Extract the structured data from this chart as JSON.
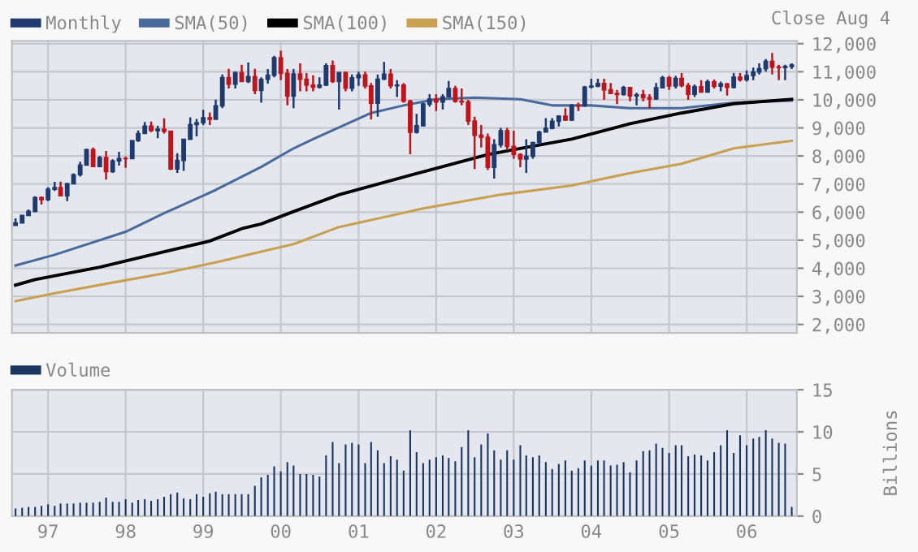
{
  "chart_data": [
    {
      "type": "candlestick",
      "legend": "top left",
      "grid": true,
      "annotations": [
        "Close Aug 4"
      ],
      "xlim": [
        "1996-07-15",
        "2006-08-25"
      ],
      "ylim": [
        1700,
        12100
      ],
      "xticks": [
        {
          "value": "1997-01",
          "label": null
        },
        {
          "value": "1998-01",
          "label": null
        },
        {
          "value": "1999-01",
          "label": null
        },
        {
          "value": "2000-01",
          "label": null
        },
        {
          "value": "2001-01",
          "label": null
        },
        {
          "value": "2002-01",
          "label": null
        },
        {
          "value": "2003-01",
          "label": null
        },
        {
          "value": "2004-01",
          "label": null
        },
        {
          "value": "2005-01",
          "label": null
        },
        {
          "value": "2006-01",
          "label": null
        }
      ],
      "yticks": [
        {
          "value": 2000,
          "label": "2,000"
        },
        {
          "value": 3000,
          "label": "3,000"
        },
        {
          "value": 4000,
          "label": "4,000"
        },
        {
          "value": 5000,
          "label": "5,000"
        },
        {
          "value": 6000,
          "label": "6,000"
        },
        {
          "value": 7000,
          "label": "7,000"
        },
        {
          "value": 8000,
          "label": "8,000"
        },
        {
          "value": 9000,
          "label": "9,000"
        },
        {
          "value": 10000,
          "label": "10,000"
        },
        {
          "value": 11000,
          "label": "11,000"
        },
        {
          "value": 12000,
          "label": "12,000"
        }
      ],
      "tick_labels": "y",
      "series": [
        {
          "type": "candlestick",
          "name": "Monthly",
          "color": "#1f3a6e",
          "x": [
            "1996-08",
            "1996-09",
            "1996-10",
            "1996-11",
            "1996-12",
            "1997-01",
            "1997-02",
            "1997-03",
            "1997-04",
            "1997-05",
            "1997-06",
            "1997-07",
            "1997-08",
            "1997-09",
            "1997-10",
            "1997-11",
            "1997-12",
            "1998-01",
            "1998-02",
            "1998-03",
            "1998-04",
            "1998-05",
            "1998-06",
            "1998-07",
            "1998-08",
            "1998-09",
            "1998-10",
            "1998-11",
            "1998-12",
            "1999-01",
            "1999-02",
            "1999-03",
            "1999-04",
            "1999-05",
            "1999-06",
            "1999-07",
            "1999-08",
            "1999-09",
            "1999-10",
            "1999-11",
            "1999-12",
            "2000-01",
            "2000-02",
            "2000-03",
            "2000-04",
            "2000-05",
            "2000-06",
            "2000-07",
            "2000-08",
            "2000-09",
            "2000-10",
            "2000-11",
            "2000-12",
            "2001-01",
            "2001-02",
            "2001-03",
            "2001-04",
            "2001-05",
            "2001-06",
            "2001-07",
            "2001-08",
            "2001-09",
            "2001-10",
            "2001-11",
            "2001-12",
            "2002-01",
            "2002-02",
            "2002-03",
            "2002-04",
            "2002-05",
            "2002-06",
            "2002-07",
            "2002-08",
            "2002-09",
            "2002-10",
            "2002-11",
            "2002-12",
            "2003-01",
            "2003-02",
            "2003-03",
            "2003-04",
            "2003-05",
            "2003-06",
            "2003-07",
            "2003-08",
            "2003-09",
            "2003-10",
            "2003-11",
            "2003-12",
            "2004-01",
            "2004-02",
            "2004-03",
            "2004-04",
            "2004-05",
            "2004-06",
            "2004-07",
            "2004-08",
            "2004-09",
            "2004-10",
            "2004-11",
            "2004-12",
            "2005-01",
            "2005-02",
            "2005-03",
            "2005-04",
            "2005-05",
            "2005-06",
            "2005-07",
            "2005-08",
            "2005-09",
            "2005-10",
            "2005-11",
            "2005-12",
            "2006-01",
            "2006-02",
            "2006-03",
            "2006-04",
            "2006-05",
            "2006-06",
            "2006-07",
            "2006-08"
          ],
          "ohlc": [
            [
              5529,
              5780,
              5525,
              5616
            ],
            [
              5616,
              5894,
              5607,
              5882
            ],
            [
              5882,
              6094,
              5880,
              6029
            ],
            [
              6029,
              6562,
              6000,
              6522
            ],
            [
              6522,
              6561,
              6268,
              6448
            ],
            [
              6448,
              6883,
              6391,
              6813
            ],
            [
              6813,
              7079,
              6750,
              6877
            ],
            [
              6877,
              7085,
              6583,
              6584
            ],
            [
              6584,
              7040,
              6391,
              7009
            ],
            [
              7009,
              7384,
              7000,
              7331
            ],
            [
              7331,
              7796,
              7269,
              7673
            ],
            [
              7673,
              8254,
              7655,
              8223
            ],
            [
              8223,
              8299,
              7600,
              7622
            ],
            [
              7622,
              8000,
              7600,
              7945
            ],
            [
              7945,
              8178,
              7161,
              7442
            ],
            [
              7442,
              7881,
              7400,
              7823
            ],
            [
              7823,
              8150,
              7660,
              7908
            ],
            [
              7908,
              7980,
              7580,
              7907
            ],
            [
              7907,
              8560,
              7900,
              8546
            ],
            [
              8546,
              8906,
              8500,
              8800
            ],
            [
              8800,
              9211,
              8800,
              9063
            ],
            [
              9063,
              9226,
              8850,
              8900
            ],
            [
              8900,
              9070,
              8630,
              8952
            ],
            [
              8952,
              9338,
              8800,
              8883
            ],
            [
              8883,
              8890,
              7500,
              7539
            ],
            [
              7539,
              8100,
              7400,
              7843
            ],
            [
              7843,
              8600,
              7467,
              8592
            ],
            [
              8592,
              9380,
              8590,
              9117
            ],
            [
              9117,
              9320,
              8700,
              9181
            ],
            [
              9181,
              9644,
              9100,
              9359
            ],
            [
              9359,
              9552,
              9100,
              9307
            ],
            [
              9307,
              10007,
              9300,
              9786
            ],
            [
              9786,
              10900,
              9700,
              10789
            ],
            [
              10789,
              11108,
              10400,
              10560
            ],
            [
              10560,
              11000,
              10400,
              10971
            ],
            [
              10971,
              11252,
              10650,
              10655
            ],
            [
              10655,
              11326,
              10600,
              10829
            ],
            [
              10829,
              11108,
              10200,
              10337
            ],
            [
              10337,
              10800,
              9900,
              10729
            ],
            [
              10729,
              11100,
              10580,
              10878
            ],
            [
              10878,
              11568,
              10800,
              11497
            ],
            [
              11497,
              11750,
              10700,
              10941
            ],
            [
              10941,
              11100,
              9800,
              10128
            ],
            [
              10128,
              11100,
              9700,
              10922
            ],
            [
              10922,
              11300,
              10300,
              10734
            ],
            [
              10734,
              10950,
              10300,
              10522
            ],
            [
              10522,
              10870,
              10300,
              10448
            ],
            [
              10448,
              10800,
              10400,
              10522
            ],
            [
              10522,
              11300,
              10500,
              11215
            ],
            [
              11215,
              11400,
              10600,
              10651
            ],
            [
              10651,
              10975,
              9650,
              10971
            ],
            [
              10971,
              11000,
              10300,
              10415
            ],
            [
              10415,
              10900,
              10300,
              10787
            ],
            [
              10787,
              11000,
              10500,
              10887
            ],
            [
              10887,
              11000,
              10400,
              10495
            ],
            [
              10495,
              10600,
              9300,
              9879
            ],
            [
              9879,
              10900,
              9400,
              10735
            ],
            [
              10735,
              11350,
              10700,
              10912
            ],
            [
              10912,
              11100,
              10400,
              10502
            ],
            [
              10502,
              10700,
              10100,
              10523
            ],
            [
              10523,
              10600,
              9900,
              9950
            ],
            [
              9950,
              10000,
              8062,
              8848
            ],
            [
              8848,
              9500,
              8800,
              9075
            ],
            [
              9075,
              9900,
              9050,
              9852
            ],
            [
              9852,
              10200,
              9750,
              10022
            ],
            [
              10022,
              10200,
              9600,
              9920
            ],
            [
              9920,
              10200,
              9650,
              10106
            ],
            [
              10106,
              10670,
              10100,
              10404
            ],
            [
              10404,
              10500,
              9900,
              9946
            ],
            [
              9946,
              10400,
              9800,
              9925
            ],
            [
              9925,
              10000,
              9100,
              9243
            ],
            [
              9243,
              9400,
              7532,
              8737
            ],
            [
              8737,
              9100,
              8300,
              8664
            ],
            [
              8664,
              8800,
              7500,
              7592
            ],
            [
              7592,
              8600,
              7197,
              8397
            ],
            [
              8397,
              9000,
              8300,
              8896
            ],
            [
              8896,
              9000,
              8200,
              8342
            ],
            [
              8342,
              8900,
              7900,
              8054
            ],
            [
              8054,
              8100,
              7600,
              7891
            ],
            [
              7891,
              8600,
              7400,
              7992
            ],
            [
              7992,
              8500,
              7900,
              8480
            ],
            [
              8480,
              8900,
              8400,
              8850
            ],
            [
              8850,
              9350,
              8850,
              8985
            ],
            [
              8985,
              9350,
              8950,
              9234
            ],
            [
              9234,
              9450,
              9050,
              9416
            ],
            [
              9416,
              9700,
              9250,
              9275
            ],
            [
              9275,
              9850,
              9250,
              9801
            ],
            [
              9801,
              9900,
              9600,
              9782
            ],
            [
              9782,
              10500,
              9750,
              10454
            ],
            [
              10454,
              10750,
              10400,
              10488
            ],
            [
              10488,
              10750,
              10450,
              10584
            ],
            [
              10584,
              10750,
              10000,
              10358
            ],
            [
              10358,
              10600,
              10200,
              10226
            ],
            [
              10226,
              10350,
              9850,
              10188
            ],
            [
              10188,
              10500,
              10150,
              10435
            ],
            [
              10435,
              10450,
              9950,
              10140
            ],
            [
              10140,
              10250,
              9800,
              10174
            ],
            [
              10174,
              10350,
              9950,
              10080
            ],
            [
              10080,
              10200,
              9700,
              10027
            ],
            [
              10027,
              10600,
              10000,
              10428
            ],
            [
              10428,
              10850,
              10400,
              10783
            ],
            [
              10783,
              10850,
              10350,
              10490
            ],
            [
              10490,
              10850,
              10400,
              10766
            ],
            [
              10766,
              10950,
              10450,
              10504
            ],
            [
              10504,
              10600,
              10000,
              10193
            ],
            [
              10193,
              10550,
              10100,
              10467
            ],
            [
              10467,
              10700,
              10250,
              10275
            ],
            [
              10275,
              10720,
              10250,
              10641
            ],
            [
              10641,
              10720,
              10400,
              10482
            ],
            [
              10482,
              10650,
              10300,
              10569
            ],
            [
              10569,
              10600,
              10150,
              10440
            ],
            [
              10440,
              10950,
              10400,
              10806
            ],
            [
              10806,
              10950,
              10650,
              10718
            ],
            [
              10718,
              11050,
              10650,
              10865
            ],
            [
              10865,
              11150,
              10700,
              10993
            ],
            [
              10993,
              11300,
              10900,
              11109
            ],
            [
              11109,
              11450,
              11000,
              11367
            ],
            [
              11367,
              11670,
              10900,
              11168
            ],
            [
              11168,
              11250,
              10700,
              11150
            ],
            [
              11150,
              11250,
              10700,
              11186
            ],
            [
              11186,
              11300,
              11100,
              11242
            ]
          ],
          "colors": [
            "#1f3a6e",
            "#1f3a6e",
            "#1f3a6e",
            "#1f3a6e",
            "#c0141c",
            "#1f3a6e",
            "#1f3a6e",
            "#c0141c",
            "#1f3a6e",
            "#1f3a6e",
            "#1f3a6e",
            "#1f3a6e",
            "#c0141c",
            "#1f3a6e",
            "#c0141c",
            "#1f3a6e",
            "#1f3a6e",
            "#c0141c",
            "#1f3a6e",
            "#1f3a6e",
            "#1f3a6e",
            "#c0141c",
            "#1f3a6e",
            "#c0141c",
            "#c0141c",
            "#1f3a6e",
            "#1f3a6e",
            "#1f3a6e",
            "#1f3a6e",
            "#1f3a6e",
            "#c0141c",
            "#1f3a6e",
            "#1f3a6e",
            "#c0141c",
            "#1f3a6e",
            "#c0141c",
            "#1f3a6e",
            "#c0141c",
            "#1f3a6e",
            "#1f3a6e",
            "#1f3a6e",
            "#c0141c",
            "#c0141c",
            "#1f3a6e",
            "#c0141c",
            "#c0141c",
            "#c0141c",
            "#1f3a6e",
            "#1f3a6e",
            "#c0141c",
            "#1f3a6e",
            "#c0141c",
            "#1f3a6e",
            "#1f3a6e",
            "#c0141c",
            "#c0141c",
            "#1f3a6e",
            "#1f3a6e",
            "#c0141c",
            "#1f3a6e",
            "#c0141c",
            "#c0141c",
            "#1f3a6e",
            "#1f3a6e",
            "#1f3a6e",
            "#c0141c",
            "#1f3a6e",
            "#1f3a6e",
            "#c0141c",
            "#c0141c",
            "#c0141c",
            "#c0141c",
            "#c0141c",
            "#c0141c",
            "#1f3a6e",
            "#1f3a6e",
            "#c0141c",
            "#c0141c",
            "#c0141c",
            "#1f3a6e",
            "#1f3a6e",
            "#1f3a6e",
            "#1f3a6e",
            "#1f3a6e",
            "#1f3a6e",
            "#c0141c",
            "#1f3a6e",
            "#c0141c",
            "#1f3a6e",
            "#1f3a6e",
            "#1f3a6e",
            "#c0141c",
            "#c0141c",
            "#c0141c",
            "#1f3a6e",
            "#c0141c",
            "#1f3a6e",
            "#c0141c",
            "#c0141c",
            "#1f3a6e",
            "#1f3a6e",
            "#c0141c",
            "#1f3a6e",
            "#c0141c",
            "#c0141c",
            "#1f3a6e",
            "#c0141c",
            "#1f3a6e",
            "#c0141c",
            "#1f3a6e",
            "#c0141c",
            "#1f3a6e",
            "#c0141c",
            "#1f3a6e",
            "#1f3a6e",
            "#1f3a6e",
            "#1f3a6e",
            "#c0141c",
            "#c0141c",
            "#1f3a6e",
            "#1f3a6e"
          ]
        },
        {
          "type": "line",
          "name": "SMA(50)",
          "color": "#4a6a9c",
          "x": [
            "1996-08",
            "1997-02",
            "1998-01",
            "1998-07",
            "1999-03",
            "1999-10",
            "2000-03",
            "2000-06",
            "2001-03",
            "2001-08",
            "2002-01",
            "2002-07",
            "2003-02",
            "2003-07",
            "2004-01",
            "2004-07",
            "2005-03",
            "2005-11",
            "2006-08"
          ],
          "values": [
            4100,
            4480,
            5300,
            5960,
            6790,
            7610,
            8270,
            8600,
            9530,
            9800,
            10020,
            10080,
            10020,
            9800,
            9800,
            9700,
            9700,
            9900,
            9970
          ]
        },
        {
          "type": "line",
          "name": "SMA(100)",
          "color": "#000000",
          "x": [
            "1996-08",
            "1996-11",
            "1997-09",
            "1998-07",
            "1999-02",
            "1999-07",
            "1999-10",
            "2000-03",
            "2000-10",
            "2001-11",
            "2002-09",
            "2003-02",
            "2003-10",
            "2004-07",
            "2005-03",
            "2005-11",
            "2006-08"
          ],
          "values": [
            3400,
            3600,
            4040,
            4590,
            4970,
            5410,
            5580,
            6020,
            6620,
            7440,
            8050,
            8270,
            8600,
            9150,
            9530,
            9860,
            10020
          ]
        },
        {
          "type": "line",
          "name": "SMA(150)",
          "color": "#c8a050",
          "x": [
            "1996-08",
            "1997-02",
            "1997-11",
            "1998-07",
            "1999-03",
            "1999-10",
            "2000-03",
            "2000-10",
            "2001-11",
            "2002-11",
            "2003-10",
            "2004-07",
            "2005-03",
            "2005-11",
            "2006-08"
          ],
          "values": [
            2830,
            3110,
            3490,
            3820,
            4210,
            4590,
            4860,
            5470,
            6130,
            6620,
            6950,
            7390,
            7720,
            8270,
            8540
          ]
        }
      ]
    },
    {
      "type": "bar",
      "legend": "top left",
      "grid": true,
      "ylabel": "Billions",
      "xlim": [
        "1996-07-15",
        "2006-08-25"
      ],
      "ylim": [
        0,
        15
      ],
      "yticks": [
        0,
        5,
        10,
        15
      ],
      "xticks": [
        {
          "value": "1997-01",
          "label": "97"
        },
        {
          "value": "1998-01",
          "label": "98"
        },
        {
          "value": "1999-01",
          "label": "99"
        },
        {
          "value": "2000-01",
          "label": "00"
        },
        {
          "value": "2001-01",
          "label": "01"
        },
        {
          "value": "2002-01",
          "label": "02"
        },
        {
          "value": "2003-01",
          "label": "03"
        },
        {
          "value": "2004-01",
          "label": "04"
        },
        {
          "value": "2005-01",
          "label": "05"
        },
        {
          "value": "2006-01",
          "label": "06"
        }
      ],
      "series": [
        {
          "name": "Volume",
          "color": "#1a3560",
          "x": [
            "1996-08",
            "1996-09",
            "1996-10",
            "1996-11",
            "1996-12",
            "1997-01",
            "1997-02",
            "1997-03",
            "1997-04",
            "1997-05",
            "1997-06",
            "1997-07",
            "1997-08",
            "1997-09",
            "1997-10",
            "1997-11",
            "1997-12",
            "1998-01",
            "1998-02",
            "1998-03",
            "1998-04",
            "1998-05",
            "1998-06",
            "1998-07",
            "1998-08",
            "1998-09",
            "1998-10",
            "1998-11",
            "1998-12",
            "1999-01",
            "1999-02",
            "1999-03",
            "1999-04",
            "1999-05",
            "1999-06",
            "1999-07",
            "1999-08",
            "1999-09",
            "1999-10",
            "1999-11",
            "1999-12",
            "2000-01",
            "2000-02",
            "2000-03",
            "2000-04",
            "2000-05",
            "2000-06",
            "2000-07",
            "2000-08",
            "2000-09",
            "2000-10",
            "2000-11",
            "2000-12",
            "2001-01",
            "2001-02",
            "2001-03",
            "2001-04",
            "2001-05",
            "2001-06",
            "2001-07",
            "2001-08",
            "2001-09",
            "2001-10",
            "2001-11",
            "2001-12",
            "2002-01",
            "2002-02",
            "2002-03",
            "2002-04",
            "2002-05",
            "2002-06",
            "2002-07",
            "2002-08",
            "2002-09",
            "2002-10",
            "2002-11",
            "2002-12",
            "2003-01",
            "2003-02",
            "2003-03",
            "2003-04",
            "2003-05",
            "2003-06",
            "2003-07",
            "2003-08",
            "2003-09",
            "2003-10",
            "2003-11",
            "2003-12",
            "2004-01",
            "2004-02",
            "2004-03",
            "2004-04",
            "2004-05",
            "2004-06",
            "2004-07",
            "2004-08",
            "2004-09",
            "2004-10",
            "2004-11",
            "2004-12",
            "2005-01",
            "2005-02",
            "2005-03",
            "2005-04",
            "2005-05",
            "2005-06",
            "2005-07",
            "2005-08",
            "2005-09",
            "2005-10",
            "2005-11",
            "2005-12",
            "2006-01",
            "2006-02",
            "2006-03",
            "2006-04",
            "2006-05",
            "2006-06",
            "2006-07",
            "2006-08"
          ],
          "values": [
            0.9,
            1.0,
            1.1,
            1.1,
            1.2,
            1.4,
            1.2,
            1.5,
            1.5,
            1.5,
            1.6,
            1.6,
            1.6,
            1.7,
            2.2,
            1.7,
            1.7,
            2.0,
            1.6,
            1.9,
            2.0,
            1.8,
            2.0,
            2.3,
            2.6,
            2.8,
            2.1,
            2.0,
            2.6,
            2.3,
            2.7,
            2.9,
            2.6,
            2.6,
            2.6,
            2.6,
            2.6,
            3.6,
            4.6,
            4.9,
            5.9,
            5.3,
            6.4,
            6.0,
            5.0,
            5.0,
            4.9,
            4.7,
            7.2,
            8.8,
            6.3,
            8.5,
            8.7,
            8.5,
            6.3,
            8.8,
            7.8,
            6.3,
            7.1,
            6.7,
            5.4,
            10.2,
            7.6,
            6.3,
            6.7,
            7.0,
            7.2,
            6.9,
            6.5,
            8.2,
            10.2,
            7.0,
            8.5,
            9.8,
            7.8,
            6.7,
            7.8,
            6.7,
            8.4,
            7.2,
            7.0,
            7.2,
            6.4,
            5.6,
            6.2,
            6.6,
            5.4,
            5.7,
            6.6,
            6.0,
            6.6,
            6.6,
            6.0,
            6.1,
            6.4,
            5.2,
            6.6,
            7.7,
            7.8,
            8.6,
            8.1,
            7.5,
            8.4,
            8.4,
            7.1,
            7.3,
            7.2,
            6.6,
            7.6,
            8.4,
            10.2,
            7.5,
            9.6,
            8.4,
            9.2,
            9.4,
            10.2,
            9.2,
            8.7,
            8.6,
            1.1
          ]
        }
      ]
    }
  ]
}
